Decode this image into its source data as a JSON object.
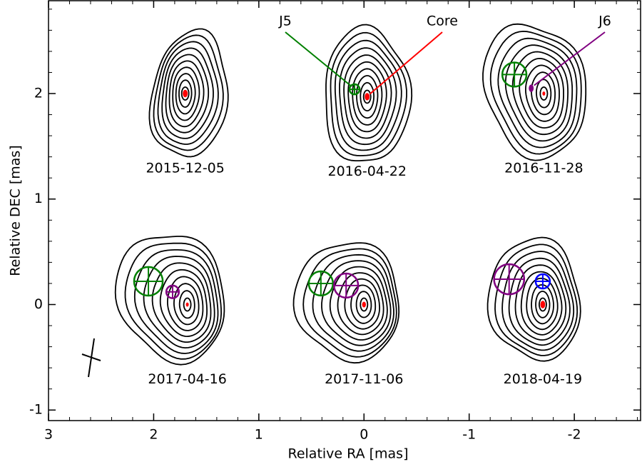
{
  "chart_data": {
    "type": "vlbi-maps",
    "xlabel": "Relative RA [mas]",
    "ylabel": "Relative DEC [mas]",
    "xlim": [
      3,
      -2.63
    ],
    "ylim": [
      -1.1,
      2.88
    ],
    "xticks": [
      3,
      2,
      1,
      0,
      -1,
      -2
    ],
    "yticks": [
      -1,
      0,
      1,
      2
    ],
    "annotations": [
      {
        "text": "J5",
        "color": "#008000"
      },
      {
        "text": "Core",
        "color": "#ff0000"
      },
      {
        "text": "J6",
        "color": "#800080"
      }
    ],
    "epochs": [
      {
        "label": "2015-12-05",
        "components": [
          {
            "x": 1.7,
            "y": 2.0,
            "size": 0.02,
            "color": "#ff0000"
          }
        ]
      },
      {
        "label": "2016-04-22",
        "components": [
          {
            "x": 0.09,
            "y": 2.04,
            "size": 0.048,
            "color": "#008000"
          },
          {
            "x": -0.03,
            "y": 1.97,
            "size": 0.02,
            "color": "#ff0000"
          }
        ]
      },
      {
        "label": "2016-11-28",
        "components": [
          {
            "x": -1.43,
            "y": 2.18,
            "size": 0.115,
            "color": "#008000"
          },
          {
            "x": -1.59,
            "y": 2.05,
            "size": 0.02,
            "color": "#800080"
          },
          {
            "x": -1.71,
            "y": 2.0,
            "size": 0.01,
            "color": "#ff0000"
          }
        ]
      },
      {
        "label": "2017-04-16",
        "components": [
          {
            "x": 2.05,
            "y": 0.22,
            "size": 0.136,
            "color": "#008000"
          },
          {
            "x": 1.82,
            "y": 0.12,
            "size": 0.06,
            "color": "#800080"
          },
          {
            "x": 1.68,
            "y": 0.0,
            "size": 0.01,
            "color": "#ff0000"
          }
        ]
      },
      {
        "label": "2017-11-06",
        "components": [
          {
            "x": 0.41,
            "y": 0.2,
            "size": 0.115,
            "color": "#008000"
          },
          {
            "x": 0.17,
            "y": 0.18,
            "size": 0.115,
            "color": "#800080"
          },
          {
            "x": 0.0,
            "y": 0.0,
            "size": 0.015,
            "color": "#ff0000"
          }
        ]
      },
      {
        "label": "2018-04-19",
        "components": [
          {
            "x": -1.38,
            "y": 0.24,
            "size": 0.143,
            "color": "#800080"
          },
          {
            "x": -1.7,
            "y": 0.22,
            "size": 0.068,
            "color": "#0000ff"
          },
          {
            "x": -1.7,
            "y": 0.0,
            "size": 0.02,
            "color": "#ff0000"
          }
        ]
      }
    ]
  }
}
